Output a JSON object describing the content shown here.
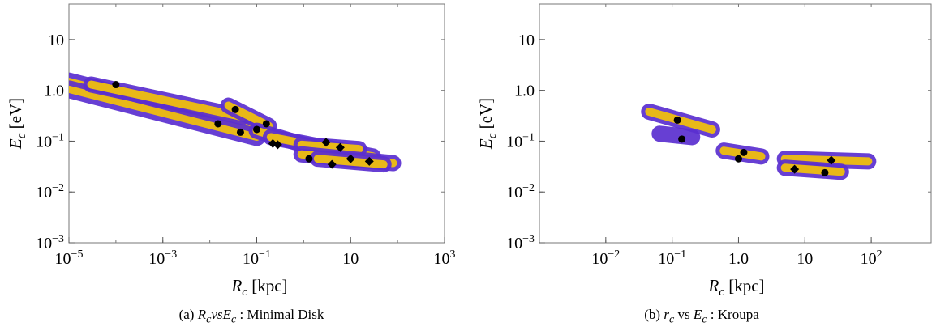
{
  "figure": {
    "captions": [
      {
        "prefix": "(a) ",
        "math": "R",
        "sub": "c",
        "vs": "vs",
        "math2": "E",
        "sub2": "c",
        "rest": " : Minimal Disk"
      },
      {
        "prefix": "(b) ",
        "math": "r",
        "sub": "c",
        "vs": " vs ",
        "math2": "E",
        "sub2": "c",
        "rest": " : Kroupa"
      }
    ]
  },
  "chart_data": [
    {
      "type": "scatter",
      "title": "",
      "xlabel": "R_c [kpc]",
      "ylabel": "E_c [eV]",
      "xscale": "log",
      "yscale": "log",
      "xlim": [
        1e-05,
        1000
      ],
      "ylim": [
        0.001,
        50
      ],
      "xticks": [
        {
          "value": 1e-05,
          "mantissa": "10",
          "exp": "−5"
        },
        {
          "value": 0.001,
          "mantissa": "10",
          "exp": "−3"
        },
        {
          "value": 0.1,
          "mantissa": "10",
          "exp": "−1"
        },
        {
          "value": 10,
          "mantissa": "10",
          "exp": ""
        },
        {
          "value": 1000,
          "mantissa": "10",
          "exp": "3"
        }
      ],
      "yticks": [
        {
          "value": 0.001,
          "mantissa": "10",
          "exp": "−3"
        },
        {
          "value": 0.01,
          "mantissa": "10",
          "exp": "−2"
        },
        {
          "value": 0.1,
          "mantissa": "10",
          "exp": "−1"
        },
        {
          "value": 1.0,
          "mantissa": "1.0",
          "exp": ""
        },
        {
          "value": 10,
          "mantissa": "10",
          "exp": ""
        }
      ],
      "colors": {
        "band_outer": "#5b2fd0",
        "band_inner": "#e8b818",
        "marker": "#000000"
      },
      "bands": [
        {
          "x": [
            1e-05,
            0.08
          ],
          "y": [
            1.5,
            0.18
          ],
          "width": "wide"
        },
        {
          "x": [
            1e-05,
            0.1
          ],
          "y": [
            1.05,
            0.12
          ],
          "width": "wide"
        },
        {
          "x": [
            3e-05,
            0.05
          ],
          "y": [
            1.3,
            0.3
          ],
          "width": "narrow"
        },
        {
          "x": [
            0.025,
            0.18
          ],
          "y": [
            0.5,
            0.2
          ],
          "width": "narrow"
        },
        {
          "x": [
            0.1,
            5
          ],
          "y": [
            0.16,
            0.055
          ],
          "width": "narrow"
        },
        {
          "x": [
            0.2,
            30
          ],
          "y": [
            0.12,
            0.05
          ],
          "width": "narrow"
        },
        {
          "x": [
            0.9,
            15
          ],
          "y": [
            0.085,
            0.07
          ],
          "width": "narrow"
        },
        {
          "x": [
            0.9,
            80
          ],
          "y": [
            0.055,
            0.037
          ],
          "width": "narrow"
        },
        {
          "x": [
            2,
            50
          ],
          "y": [
            0.045,
            0.035
          ],
          "width": "narrow"
        }
      ],
      "series": [
        {
          "marker": "circle",
          "points": [
            [
              0.0001,
              1.3
            ],
            [
              0.015,
              0.22
            ],
            [
              0.035,
              0.42
            ],
            [
              0.045,
              0.15
            ],
            [
              0.1,
              0.17
            ],
            [
              0.16,
              0.22
            ],
            [
              1.3,
              0.045
            ]
          ]
        },
        {
          "marker": "diamond",
          "points": [
            [
              0.22,
              0.09
            ],
            [
              0.28,
              0.085
            ],
            [
              3,
              0.095
            ],
            [
              4,
              0.035
            ],
            [
              6,
              0.075
            ],
            [
              10,
              0.045
            ],
            [
              25,
              0.04
            ]
          ]
        }
      ]
    },
    {
      "type": "scatter",
      "title": "",
      "xlabel": "R_c [kpc]",
      "ylabel": "E_c [eV]",
      "xscale": "log",
      "yscale": "log",
      "xlim": [
        0.001,
        800
      ],
      "ylim": [
        0.001,
        50
      ],
      "xticks": [
        {
          "value": 0.01,
          "mantissa": "10",
          "exp": "−2"
        },
        {
          "value": 0.1,
          "mantissa": "10",
          "exp": "−1"
        },
        {
          "value": 1.0,
          "mantissa": "1.0",
          "exp": ""
        },
        {
          "value": 10,
          "mantissa": "10",
          "exp": ""
        },
        {
          "value": 100,
          "mantissa": "10",
          "exp": "2"
        }
      ],
      "yticks": [
        {
          "value": 0.001,
          "mantissa": "10",
          "exp": "−3"
        },
        {
          "value": 0.01,
          "mantissa": "10",
          "exp": "−2"
        },
        {
          "value": 0.1,
          "mantissa": "10",
          "exp": "−1"
        },
        {
          "value": 1.0,
          "mantissa": "1.0",
          "exp": ""
        },
        {
          "value": 10,
          "mantissa": "10",
          "exp": ""
        }
      ],
      "colors": {
        "band_outer": "#5b2fd0",
        "band_inner": "#e8b818",
        "marker": "#000000"
      },
      "bands": [
        {
          "x": [
            0.045,
            0.4
          ],
          "y": [
            0.38,
            0.17
          ],
          "width": "narrow",
          "inner": true
        },
        {
          "x": [
            0.065,
            0.2
          ],
          "y": [
            0.14,
            0.12
          ],
          "width": "narrow",
          "inner": false
        },
        {
          "x": [
            0.6,
            2.2
          ],
          "y": [
            0.065,
            0.05
          ],
          "width": "narrow",
          "inner": true
        },
        {
          "x": [
            5,
            90
          ],
          "y": [
            0.045,
            0.04
          ],
          "width": "narrow",
          "inner": true
        },
        {
          "x": [
            5,
            35
          ],
          "y": [
            0.03,
            0.025
          ],
          "width": "narrow",
          "inner": true
        }
      ],
      "series": [
        {
          "marker": "circle",
          "points": [
            [
              0.12,
              0.26
            ],
            [
              0.14,
              0.11
            ],
            [
              1.0,
              0.045
            ],
            [
              1.2,
              0.06
            ],
            [
              20,
              0.024
            ]
          ]
        },
        {
          "marker": "diamond",
          "points": [
            [
              7,
              0.028
            ],
            [
              25,
              0.042
            ]
          ]
        }
      ]
    }
  ]
}
